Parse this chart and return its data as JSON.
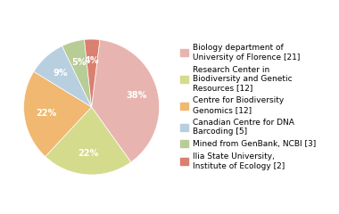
{
  "legend_labels": [
    "Biology department of\nUniversity of Florence [21]",
    "Research Center in\nBiodiversity and Genetic\nResources [12]",
    "Centre for Biodiversity\nGenomics [12]",
    "Canadian Centre for DNA\nBarcoding [5]",
    "Mined from GenBank, NCBI [3]",
    "Ilia State University,\nInstitute of Ecology [2]"
  ],
  "values": [
    21,
    12,
    12,
    5,
    3,
    2
  ],
  "colors": [
    "#e8b4b0",
    "#d4db8c",
    "#f0b870",
    "#b8cfe0",
    "#b8cc96",
    "#d98070"
  ],
  "startangle": 83,
  "background_color": "#ffffff",
  "pct_color": "white",
  "pct_fontsize": 7,
  "legend_fontsize": 6.5
}
